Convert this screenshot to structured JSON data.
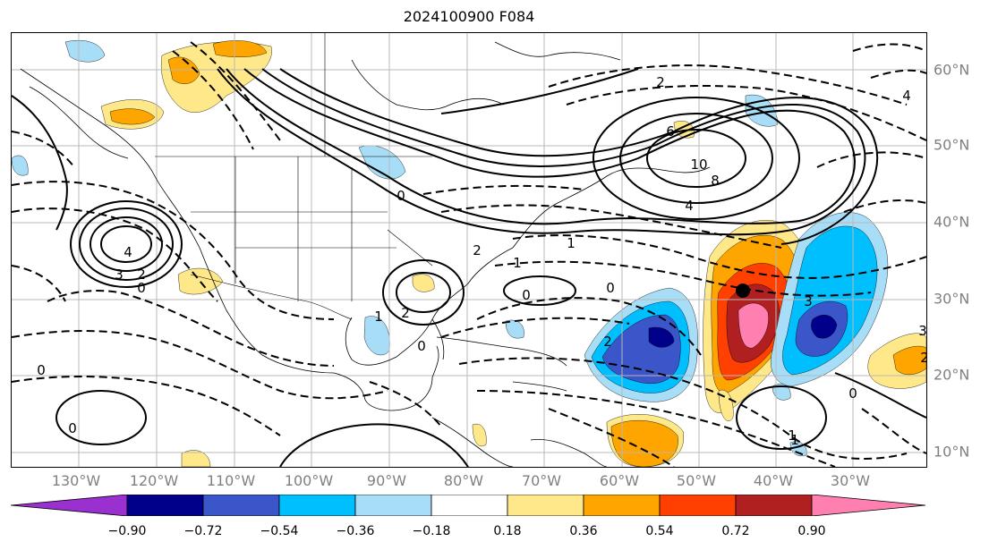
{
  "title": "2024100900 F084",
  "lon_labels": [
    "130°W",
    "120°W",
    "110°W",
    "100°W",
    "90°W",
    "80°W",
    "70°W",
    "60°W",
    "50°W",
    "40°W",
    "30°W"
  ],
  "lat_labels": [
    "60°N",
    "50°N",
    "40°N",
    "30°N",
    "20°N",
    "10°N"
  ],
  "colorbar": {
    "labels": [
      "−0.90",
      "−0.72",
      "−0.54",
      "−0.36",
      "−0.18",
      "0.18",
      "0.36",
      "0.54",
      "0.72",
      "0.90"
    ],
    "colors": [
      "#9b30d0",
      "#00008b",
      "#3a56c8",
      "#00bfff",
      "#a8ddf7",
      "#ffffff",
      "#ffe88a",
      "#ffa500",
      "#ff4000",
      "#b02020",
      "#ff80b0"
    ]
  },
  "contour_labels": [
    "4",
    "3",
    "2",
    "0",
    "6",
    "10",
    "8",
    "4",
    "3",
    "2",
    "1",
    "0",
    "0",
    "0",
    "0",
    "2",
    "1",
    "3",
    "0",
    "1",
    "0",
    "2",
    "1",
    "0",
    "2",
    "4",
    "0",
    "2",
    "1"
  ],
  "shading_colors": {
    "neg1": "#a8ddf7",
    "neg2": "#00bfff",
    "neg3": "#3a56c8",
    "neg4": "#00008b",
    "pos1": "#ffe88a",
    "pos2": "#ffa500",
    "pos3": "#ff4000",
    "pos4": "#b02020",
    "pos5": "#ff80b0"
  }
}
